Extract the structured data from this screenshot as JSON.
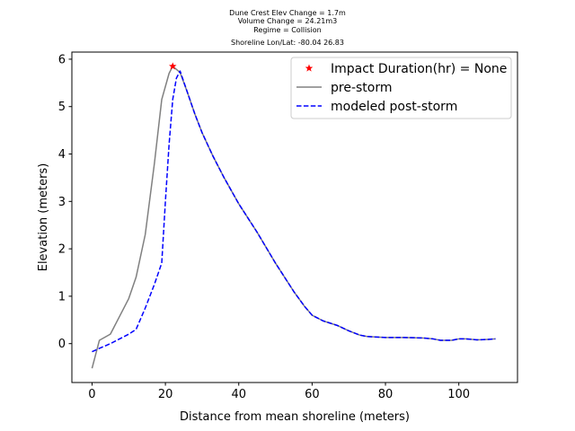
{
  "chart_data": {
    "type": "line",
    "title_lines": [
      "Dune Crest Elev Change = 1.7m",
      "Volume Change = 24.21m3",
      "Regime = Collision",
      "Shoreline Lon/Lat: -80.04 26.83"
    ],
    "xlabel": "Distance from mean shoreline (meters)",
    "ylabel": "Elevation (meters)",
    "xlim": [
      -5.5,
      116
    ],
    "ylim": [
      -0.82,
      6.15
    ],
    "xticks": [
      0,
      20,
      40,
      60,
      80,
      100
    ],
    "yticks": [
      0,
      1,
      2,
      3,
      4,
      5,
      6
    ],
    "grid": false,
    "legend_position": "top-right",
    "series": [
      {
        "name": "pre-storm",
        "color": "#808080",
        "style": "solid",
        "x": [
          0,
          2,
          5,
          7,
          10,
          12,
          14.5,
          17,
          19,
          21,
          22,
          24,
          26,
          28,
          30,
          33,
          36,
          40,
          45,
          50,
          55,
          58,
          60,
          63,
          67,
          70,
          73,
          75,
          80,
          85,
          90,
          93,
          95,
          98,
          100,
          102,
          105,
          108,
          110
        ],
        "y": [
          -0.52,
          0.07,
          0.2,
          0.5,
          0.95,
          1.4,
          2.3,
          3.8,
          5.15,
          5.7,
          5.85,
          5.72,
          5.3,
          4.85,
          4.45,
          3.95,
          3.5,
          2.95,
          2.35,
          1.7,
          1.1,
          0.78,
          0.6,
          0.48,
          0.38,
          0.27,
          0.18,
          0.15,
          0.13,
          0.13,
          0.12,
          0.1,
          0.07,
          0.07,
          0.1,
          0.1,
          0.08,
          0.09,
          0.1
        ]
      },
      {
        "name": "modeled post-storm",
        "color": "#0000ff",
        "style": "dashed",
        "x": [
          0,
          2,
          5,
          7,
          10,
          12,
          14.5,
          17,
          19,
          20,
          21,
          22,
          23,
          24,
          26,
          28,
          30,
          33,
          36,
          40,
          45,
          50,
          55,
          58,
          60,
          63,
          67,
          70,
          73,
          75,
          80,
          85,
          90,
          93,
          95,
          98,
          100,
          102,
          105,
          108,
          110
        ],
        "y": [
          -0.17,
          -0.1,
          0.0,
          0.08,
          0.2,
          0.3,
          0.75,
          1.25,
          1.7,
          3.0,
          4.2,
          5.15,
          5.6,
          5.75,
          5.3,
          4.85,
          4.45,
          3.95,
          3.5,
          2.95,
          2.35,
          1.7,
          1.1,
          0.78,
          0.6,
          0.48,
          0.38,
          0.27,
          0.18,
          0.15,
          0.13,
          0.13,
          0.12,
          0.1,
          0.07,
          0.07,
          0.1,
          0.1,
          0.08,
          0.09,
          0.1
        ]
      },
      {
        "name": "Impact Duration(hr) = None",
        "color": "#ff0000",
        "style": "marker-star",
        "x": [
          22
        ],
        "y": [
          5.85
        ]
      }
    ]
  }
}
